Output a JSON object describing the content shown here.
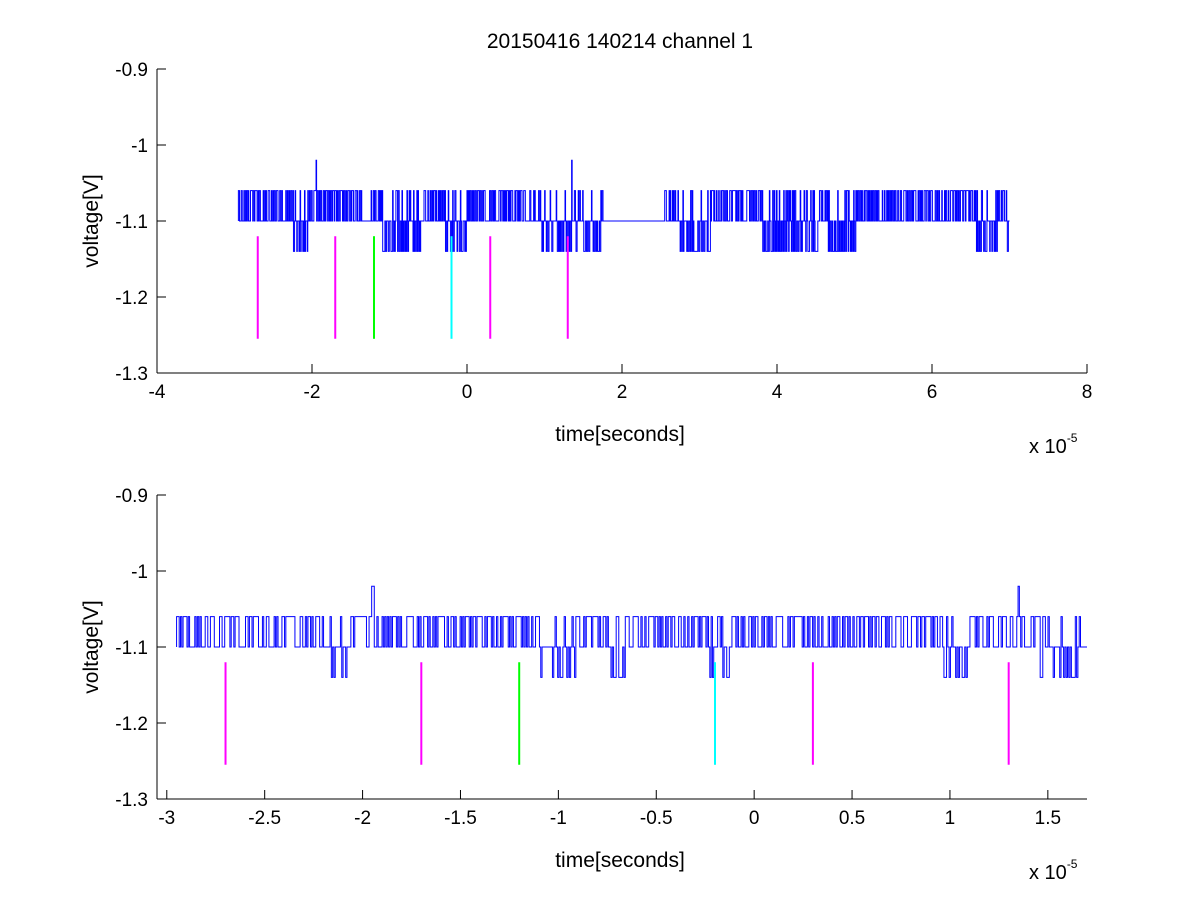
{
  "figure": {
    "title": "20150416 140214 channel 1"
  },
  "chart_data": [
    {
      "type": "line",
      "title": "20150416 140214 channel 1",
      "xlabel": "time[seconds]",
      "ylabel": "voltage[V]",
      "x_exponent_base": "x 10",
      "x_exponent": "-5",
      "xlim": [
        -4,
        8
      ],
      "ylim": [
        -1.3,
        -0.9
      ],
      "y_reversed": true,
      "xticks": [
        -4,
        -2,
        0,
        2,
        4,
        6,
        8
      ],
      "xtick_labels": [
        "-4",
        "-2",
        "0",
        "2",
        "4",
        "6",
        "8"
      ],
      "yticks": [
        -1.3,
        -1.2,
        -1.1,
        -1.0,
        -0.9
      ],
      "ytick_labels": [
        "-1.3",
        "-1.2",
        "-1.1",
        "-1",
        "-0.9"
      ],
      "grid": false,
      "series": [
        {
          "color": "#0000ff",
          "x_range": [
            -2.95,
            7.0
          ],
          "baseline": -1.1,
          "levels": [
            -1.06,
            -1.1,
            -1.14
          ],
          "spikes": [
            {
              "x": -1.95,
              "y": -1.02
            },
            {
              "x": 1.35,
              "y": -1.02
            }
          ],
          "low_regions": [
            [
              -2.2,
              -2.1
            ],
            [
              -1.05,
              -0.55
            ],
            [
              -0.25,
              -0.05
            ],
            [
              1.0,
              1.7
            ],
            [
              2.7,
              3.1
            ],
            [
              3.85,
              4.5
            ],
            [
              4.7,
              5.0
            ],
            [
              6.6,
              6.8
            ],
            [
              7.0,
              7.0
            ]
          ]
        }
      ],
      "markers": [
        {
          "x": -2.7,
          "y_top": -1.12,
          "y_bottom": -1.255,
          "color": "#ff00ff"
        },
        {
          "x": -1.7,
          "y_top": -1.12,
          "y_bottom": -1.255,
          "color": "#ff00ff"
        },
        {
          "x": -1.2,
          "y_top": -1.12,
          "y_bottom": -1.255,
          "color": "#00ff00"
        },
        {
          "x": -0.2,
          "y_top": -1.12,
          "y_bottom": -1.255,
          "color": "#00ffff"
        },
        {
          "x": 0.3,
          "y_top": -1.12,
          "y_bottom": -1.255,
          "color": "#ff00ff"
        },
        {
          "x": 1.3,
          "y_top": -1.12,
          "y_bottom": -1.255,
          "color": "#ff00ff"
        }
      ]
    },
    {
      "type": "line",
      "title": "",
      "xlabel": "time[seconds]",
      "ylabel": "voltage[V]",
      "x_exponent_base": "x 10",
      "x_exponent": "-5",
      "xlim": [
        -3.05,
        1.7
      ],
      "ylim": [
        -1.3,
        -0.9
      ],
      "y_reversed": true,
      "xticks": [
        -3,
        -2.5,
        -2,
        -1.5,
        -1,
        -0.5,
        0,
        0.5,
        1,
        1.5
      ],
      "xtick_labels": [
        "-3",
        "-2.5",
        "-2",
        "-1.5",
        "-1",
        "-0.5",
        "0",
        "0.5",
        "1",
        "1.5"
      ],
      "yticks": [
        -1.3,
        -1.2,
        -1.1,
        -1.0,
        -0.9
      ],
      "ytick_labels": [
        "-1.3",
        "-1.2",
        "-1.1",
        "-1",
        "-0.9"
      ],
      "grid": false,
      "series": [
        {
          "color": "#0000ff",
          "x_range": [
            -2.95,
            1.7
          ],
          "baseline": -1.1,
          "levels": [
            -1.06,
            -1.1,
            -1.14
          ],
          "spikes": [
            {
              "x": -1.95,
              "y": -1.02
            },
            {
              "x": 1.35,
              "y": -1.02
            }
          ],
          "low_regions": [
            [
              -2.15,
              -2.1
            ],
            [
              -1.05,
              -0.95
            ],
            [
              -0.7,
              -0.7
            ],
            [
              -0.2,
              -0.15
            ],
            [
              1.0,
              1.05
            ],
            [
              1.5,
              1.7
            ]
          ]
        }
      ],
      "markers": [
        {
          "x": -2.7,
          "y_top": -1.12,
          "y_bottom": -1.255,
          "color": "#ff00ff"
        },
        {
          "x": -1.7,
          "y_top": -1.12,
          "y_bottom": -1.255,
          "color": "#ff00ff"
        },
        {
          "x": -1.2,
          "y_top": -1.12,
          "y_bottom": -1.255,
          "color": "#00ff00"
        },
        {
          "x": -0.2,
          "y_top": -1.12,
          "y_bottom": -1.255,
          "color": "#00ffff"
        },
        {
          "x": 0.3,
          "y_top": -1.12,
          "y_bottom": -1.255,
          "color": "#ff00ff"
        },
        {
          "x": 1.3,
          "y_top": -1.12,
          "y_bottom": -1.255,
          "color": "#ff00ff"
        }
      ]
    }
  ]
}
